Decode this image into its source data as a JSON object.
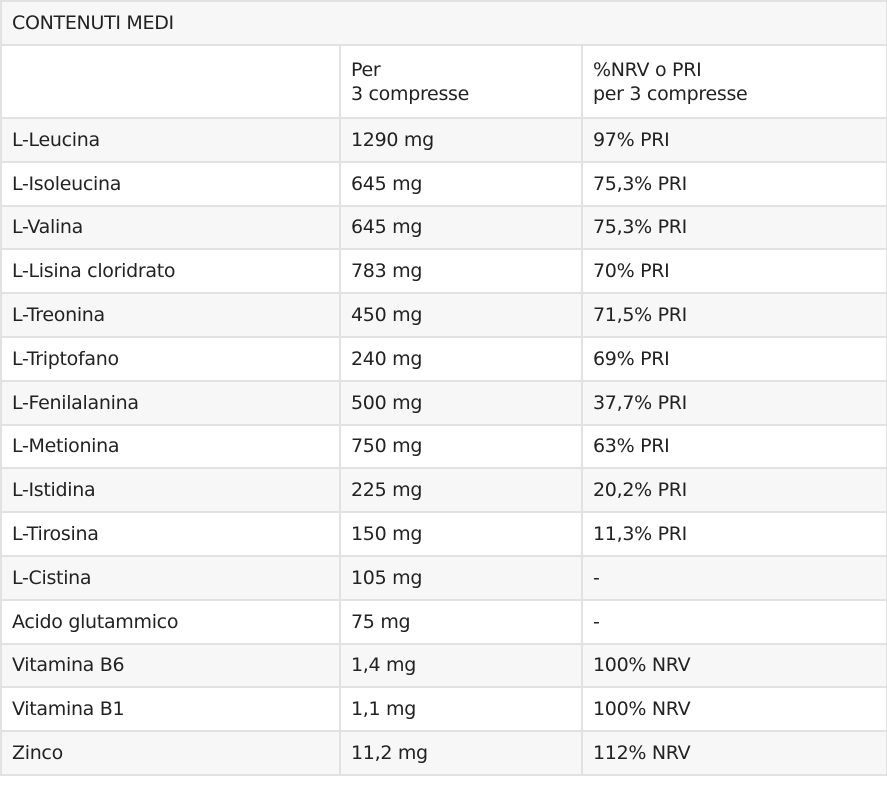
{
  "title": "CONTENUTI MEDI",
  "headers": [
    "",
    "Per\n3 compresse",
    "%NRV o PRI\nper 3 compresse"
  ],
  "header_lines": {
    "col2": [
      "Per",
      "3 compresse"
    ],
    "col3": [
      "%NRV o PRI",
      "per 3 compresse"
    ]
  },
  "rows": [
    [
      "L-Leucina",
      "1290 mg",
      "97% PRI"
    ],
    [
      "L-Isoleucina",
      "645 mg",
      "75,3% PRI"
    ],
    [
      "L-Valina",
      "645 mg",
      "75,3% PRI"
    ],
    [
      "L-Lisina cloridrato",
      "783 mg",
      "70% PRI"
    ],
    [
      "L-Treonina",
      "450 mg",
      "71,5% PRI"
    ],
    [
      "L-Triptofano",
      "240 mg",
      "69% PRI"
    ],
    [
      "L-Fenilalanina",
      "500 mg",
      "37,7% PRI"
    ],
    [
      "L-Metionina",
      "750 mg",
      "63% PRI"
    ],
    [
      "L-Istidina",
      "225 mg",
      "20,2% PRI"
    ],
    [
      "L-Tirosina",
      "150 mg",
      "11,3% PRI"
    ],
    [
      "L-Cistina",
      "105 mg",
      "-"
    ],
    [
      "Acido glutammico",
      "75 mg",
      "-"
    ],
    [
      "Vitamina B6",
      "1,4 mg",
      "100% NRV"
    ],
    [
      "Vitamina B1",
      "1,1 mg",
      "100% NRV"
    ],
    [
      "Zinco",
      "11,2 mg",
      "112% NRV"
    ]
  ],
  "colors": {
    "border": "#e2e2e2",
    "stripe": "#f7f7f7",
    "text": "#222222"
  }
}
